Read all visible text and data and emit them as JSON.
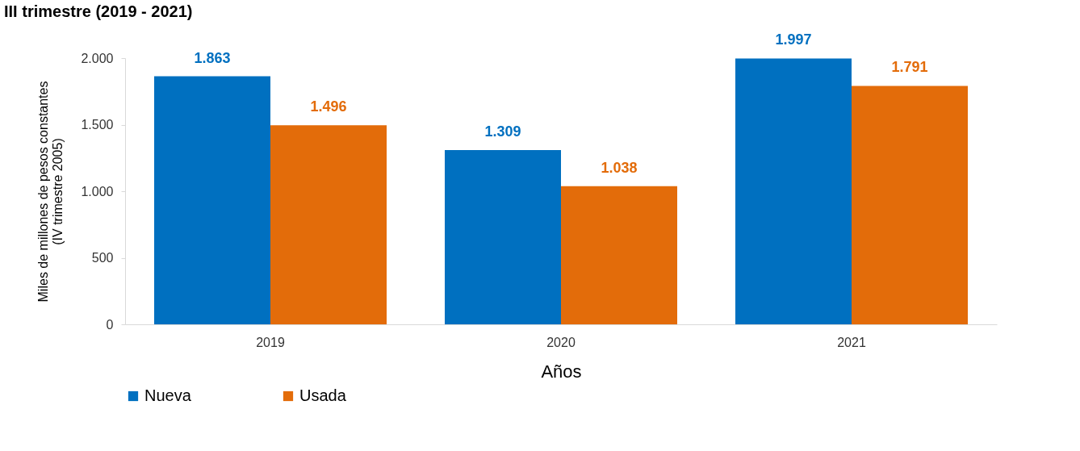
{
  "chart_data": {
    "type": "bar",
    "title": "III trimestre (2019 - 2021)",
    "xlabel": "Años",
    "ylabel": "Miles de millones de pesos constantes\n(IV trimestre 2005)",
    "categories": [
      "2019",
      "2020",
      "2021"
    ],
    "series": [
      {
        "name": "Nueva",
        "color": "#0070c0",
        "values": [
          1863,
          1309,
          1997
        ],
        "value_labels": [
          "1.863",
          "1.309",
          "1.997"
        ]
      },
      {
        "name": "Usada",
        "color": "#e36c0a",
        "values": [
          1496,
          1038,
          1791
        ],
        "value_labels": [
          "1.496",
          "1.038",
          "1.791"
        ]
      }
    ],
    "ylim": [
      0,
      2000
    ],
    "yticks": [
      0,
      {
        "value": 500,
        "label": "500"
      },
      {
        "value": 1000,
        "label": "1.000"
      },
      {
        "value": 1500,
        "label": "1.500"
      },
      {
        "value": 2000,
        "label": "2.000"
      }
    ],
    "grid": false,
    "legend": "bottom"
  }
}
